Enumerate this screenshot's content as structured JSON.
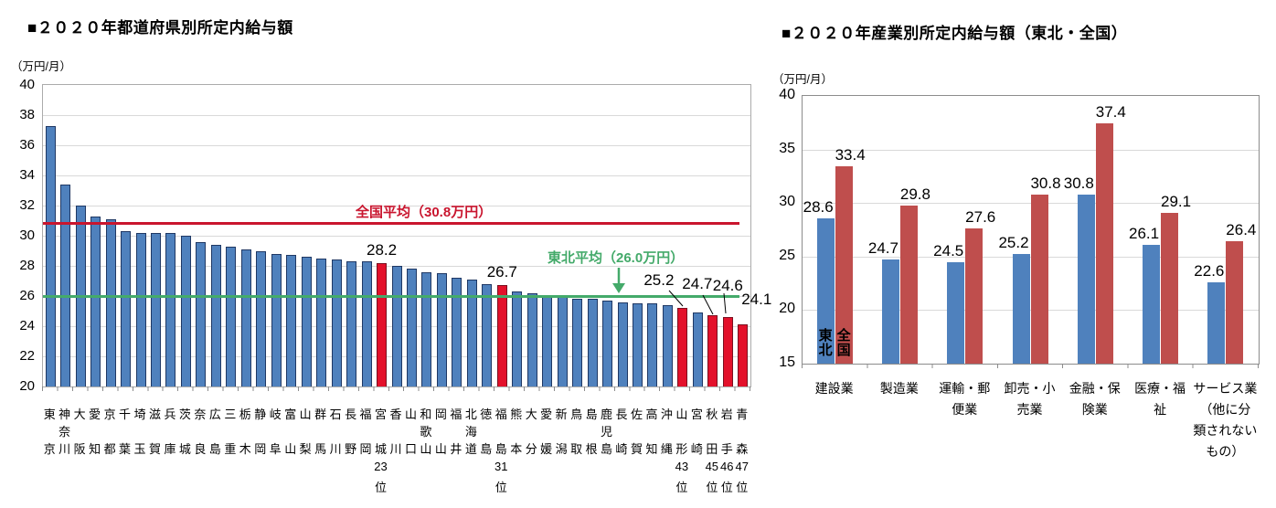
{
  "page": {
    "background": "#ffffff"
  },
  "left_chart": {
    "title": "■２０２０年都道府県別所定内給与額",
    "unit": "（万円/月）"
  },
  "right_chart": {
    "title": "■２０２０年産業別所定内給与額（東北・全国）",
    "unit": "（万円/月）"
  },
  "chart_data": [
    {
      "id": "prefecture-salary",
      "type": "bar",
      "title": "■２０２０年都道府県別所定内給与額",
      "unit": "（万円/月）",
      "ylim": [
        20,
        40
      ],
      "ytick_step": 2,
      "grid": true,
      "legend": "none",
      "bar_color": "#4f81bd",
      "bar_border": "#1f3864",
      "highlight_color": "#e3112b",
      "highlight_border": "#7a1020",
      "rank_suffix": "位",
      "items": [
        {
          "name": "東京",
          "value": 37.3
        },
        {
          "name": "神奈川",
          "value": 33.4
        },
        {
          "name": "大阪",
          "value": 32.0
        },
        {
          "name": "愛知",
          "value": 31.3
        },
        {
          "name": "京都",
          "value": 31.1
        },
        {
          "name": "千葉",
          "value": 30.3
        },
        {
          "name": "埼玉",
          "value": 30.2
        },
        {
          "name": "滋賀",
          "value": 30.2
        },
        {
          "name": "兵庫",
          "value": 30.2
        },
        {
          "name": "茨城",
          "value": 30.0
        },
        {
          "name": "奈良",
          "value": 29.6
        },
        {
          "name": "広島",
          "value": 29.4
        },
        {
          "name": "三重",
          "value": 29.3
        },
        {
          "name": "栃木",
          "value": 29.1
        },
        {
          "name": "静岡",
          "value": 29.0
        },
        {
          "name": "岐阜",
          "value": 28.8
        },
        {
          "name": "富山",
          "value": 28.7
        },
        {
          "name": "山梨",
          "value": 28.6
        },
        {
          "name": "群馬",
          "value": 28.5
        },
        {
          "name": "石川",
          "value": 28.4
        },
        {
          "name": "長野",
          "value": 28.3
        },
        {
          "name": "福岡",
          "value": 28.3
        },
        {
          "name": "宮城",
          "value": 28.2,
          "highlight": true,
          "rank": "23位"
        },
        {
          "name": "香川",
          "value": 28.0
        },
        {
          "name": "山口",
          "value": 27.8
        },
        {
          "name": "和歌山",
          "value": 27.6
        },
        {
          "name": "岡山",
          "value": 27.5
        },
        {
          "name": "福井",
          "value": 27.2
        },
        {
          "name": "北海道",
          "value": 27.1
        },
        {
          "name": "徳島",
          "value": 26.8
        },
        {
          "name": "福島",
          "value": 26.7,
          "highlight": true,
          "rank": "31位"
        },
        {
          "name": "熊本",
          "value": 26.3
        },
        {
          "name": "大分",
          "value": 26.2
        },
        {
          "name": "愛媛",
          "value": 26.0
        },
        {
          "name": "新潟",
          "value": 26.0
        },
        {
          "name": "鳥取",
          "value": 25.8
        },
        {
          "name": "島根",
          "value": 25.8
        },
        {
          "name": "鹿児島",
          "value": 25.7
        },
        {
          "name": "長崎",
          "value": 25.6
        },
        {
          "name": "佐賀",
          "value": 25.5
        },
        {
          "name": "高知",
          "value": 25.5
        },
        {
          "name": "沖縄",
          "value": 25.4
        },
        {
          "name": "山形",
          "value": 25.2,
          "highlight": true,
          "rank": "43位"
        },
        {
          "name": "宮崎",
          "value": 24.9
        },
        {
          "name": "秋田",
          "value": 24.7,
          "highlight": true,
          "rank": "45位"
        },
        {
          "name": "岩手",
          "value": 24.6,
          "highlight": true,
          "rank": "46位"
        },
        {
          "name": "青森",
          "value": 24.1,
          "highlight": true,
          "rank": "47位"
        }
      ],
      "reference_lines": [
        {
          "name": "national-average",
          "label": "全国平均（30.8万円）",
          "value": 30.8,
          "color": "#c9152e"
        },
        {
          "name": "tohoku-average",
          "label": "東北平均（26.0万円）",
          "value": 26.0,
          "color": "#44aa6a",
          "arrow_icon": "down-arrow"
        }
      ]
    },
    {
      "id": "industry-salary",
      "type": "grouped-bar",
      "title": "■２０２０年産業別所定内給与額（東北・全国）",
      "unit": "（万円/月）",
      "ylim": [
        15,
        40
      ],
      "ytick_step": 5,
      "grid": true,
      "categories": [
        [
          "建設業"
        ],
        [
          "製造業"
        ],
        [
          "運輸・郵",
          "便業"
        ],
        [
          "卸売・小",
          "売業"
        ],
        [
          "金融・保",
          "険業"
        ],
        [
          "医療・福",
          "祉"
        ],
        [
          "サービス業",
          "（他に分",
          "類されない",
          "もの）"
        ]
      ],
      "series": [
        {
          "name": "東北",
          "color": "#4f81bd",
          "values": [
            28.6,
            24.7,
            24.5,
            25.2,
            30.8,
            26.1,
            22.6
          ]
        },
        {
          "name": "全国",
          "color": "#bf4e4d",
          "values": [
            33.4,
            29.8,
            27.6,
            30.8,
            37.4,
            29.1,
            26.4
          ]
        }
      ],
      "in_bar_series_labels": [
        "東北",
        "全国"
      ]
    }
  ]
}
